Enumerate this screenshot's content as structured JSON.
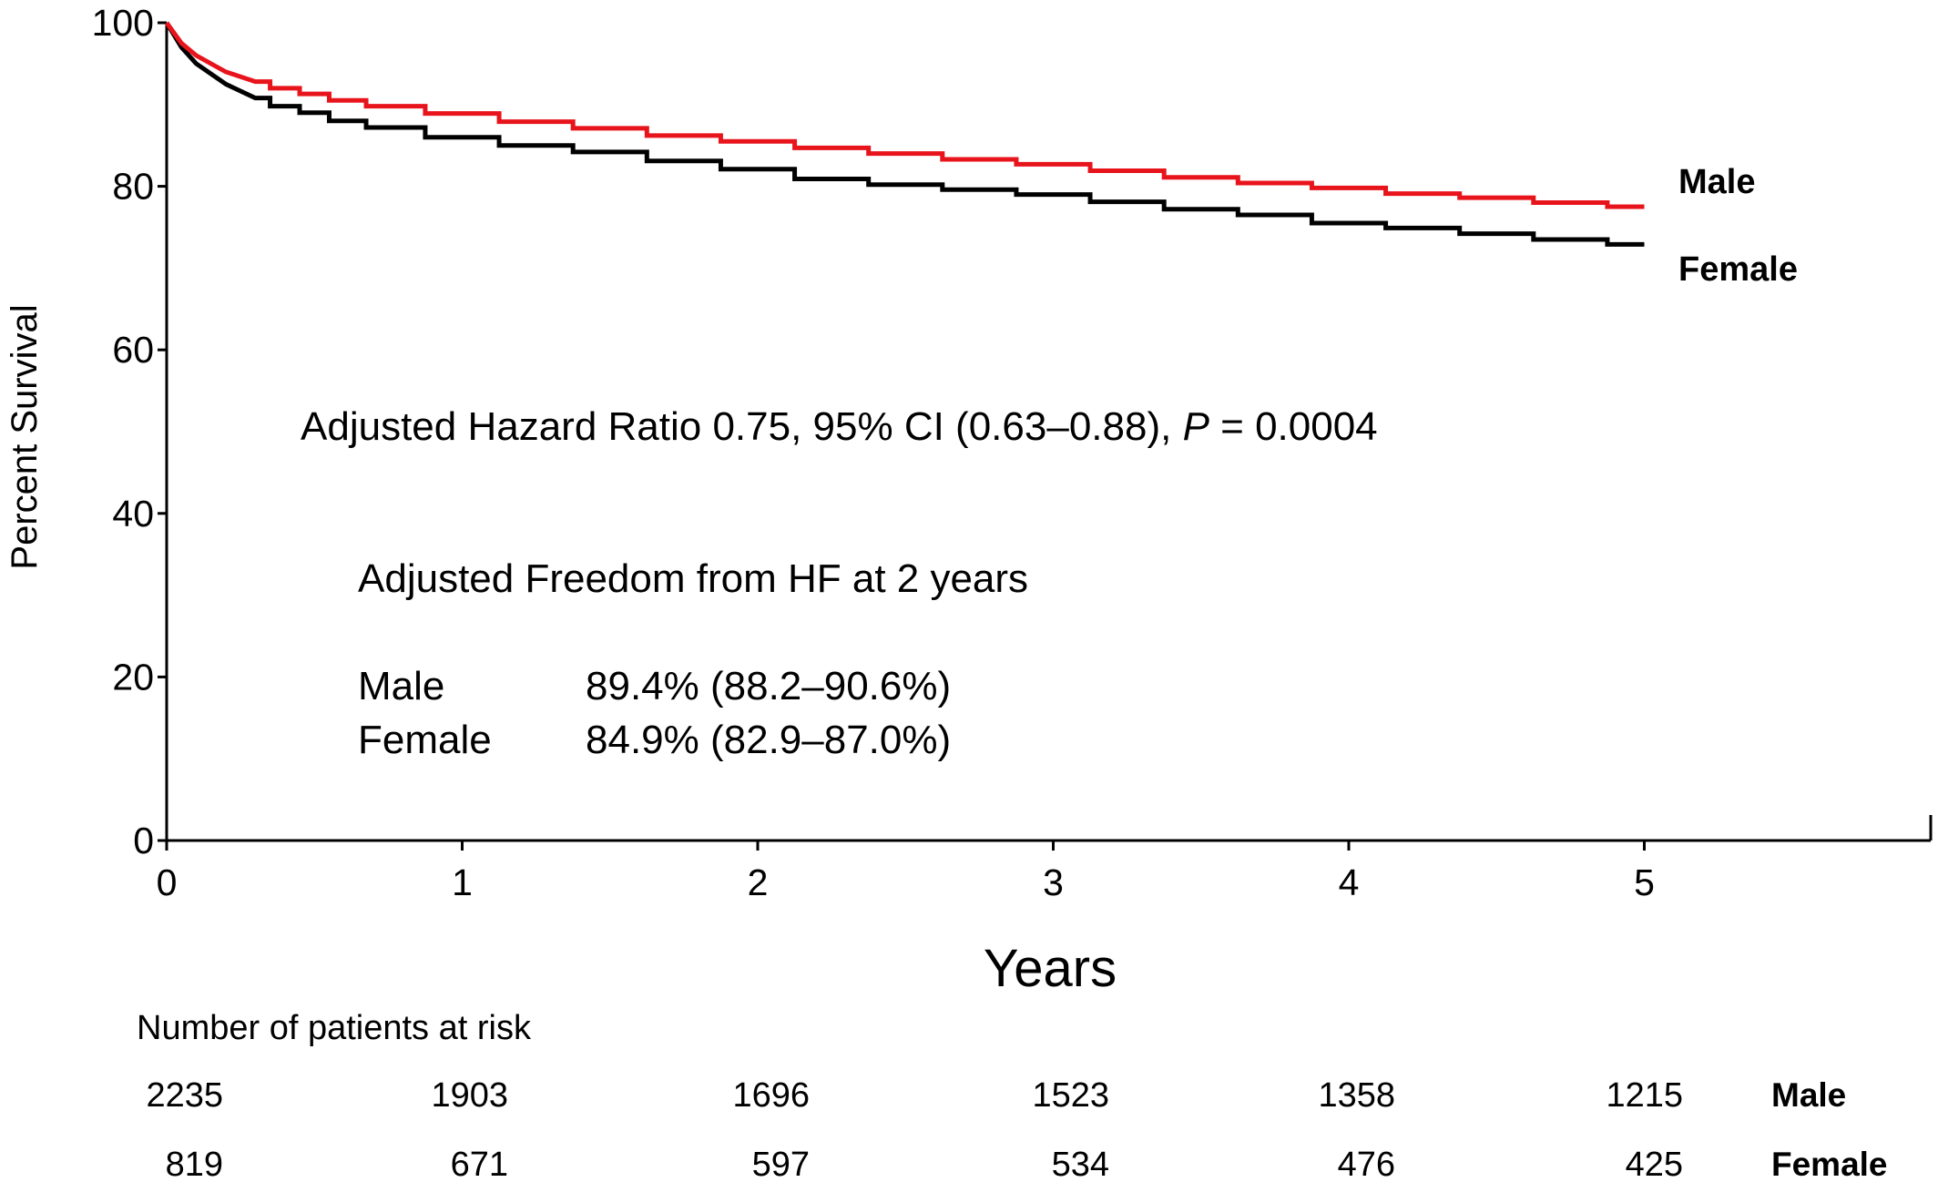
{
  "chart_data": {
    "type": "line",
    "title": "",
    "xlabel": "Years",
    "ylabel": "Percent Survival",
    "xlim": [
      0,
      6
    ],
    "ylim": [
      0,
      100
    ],
    "x_ticks": [
      0,
      1,
      2,
      3,
      4,
      5
    ],
    "y_ticks": [
      0,
      20,
      40,
      60,
      80,
      100
    ],
    "grid": false,
    "series": [
      {
        "name": "Male",
        "color": "#e8141c",
        "x": [
          0,
          0.05,
          0.1,
          0.2,
          0.3,
          0.4,
          0.5,
          0.6,
          0.75,
          1.0,
          1.25,
          1.5,
          1.75,
          2.0,
          2.25,
          2.5,
          2.75,
          3.0,
          3.25,
          3.5,
          3.75,
          4.0,
          4.25,
          4.5,
          4.75,
          5.0
        ],
        "values": [
          100,
          97.5,
          96.0,
          94.0,
          92.8,
          92.0,
          91.3,
          90.5,
          89.8,
          88.9,
          87.9,
          87.1,
          86.2,
          85.5,
          84.7,
          84.0,
          83.3,
          82.7,
          81.9,
          81.1,
          80.4,
          79.8,
          79.1,
          78.6,
          78.0,
          77.5
        ]
      },
      {
        "name": "Female",
        "color": "#000000",
        "x": [
          0,
          0.05,
          0.1,
          0.2,
          0.3,
          0.4,
          0.5,
          0.6,
          0.75,
          1.0,
          1.25,
          1.5,
          1.75,
          2.0,
          2.25,
          2.5,
          2.75,
          3.0,
          3.25,
          3.5,
          3.75,
          4.0,
          4.25,
          4.5,
          4.75,
          5.0
        ],
        "values": [
          100,
          97.0,
          95.0,
          92.5,
          90.8,
          89.8,
          89.0,
          88.0,
          87.2,
          86.0,
          85.0,
          84.2,
          83.1,
          82.1,
          80.9,
          80.2,
          79.6,
          79.0,
          78.1,
          77.2,
          76.5,
          75.5,
          74.9,
          74.2,
          73.5,
          72.9
        ]
      }
    ],
    "annotations": {
      "hazard_prefix": "Adjusted Hazard Ratio 0.75, 95% CI (0.63–0.88), ",
      "hazard_p": "P",
      "hazard_suffix": " = 0.0004",
      "freedom_title": "Adjusted Freedom from HF at 2 years",
      "freedom_rows": [
        {
          "group": "Male",
          "value": "89.4% (88.2–90.6%)"
        },
        {
          "group": "Female",
          "value": "84.9% (82.9–87.0%)"
        }
      ]
    },
    "end_labels": [
      "Male",
      "Female"
    ],
    "risk_table": {
      "title": "Number of patients at risk",
      "rows": [
        {
          "label": "Male",
          "values": [
            "2235",
            "1903",
            "1696",
            "1523",
            "1358",
            "1215"
          ]
        },
        {
          "label": "Female",
          "values": [
            "819",
            "671",
            "597",
            "534",
            "476",
            "425"
          ]
        }
      ]
    }
  }
}
